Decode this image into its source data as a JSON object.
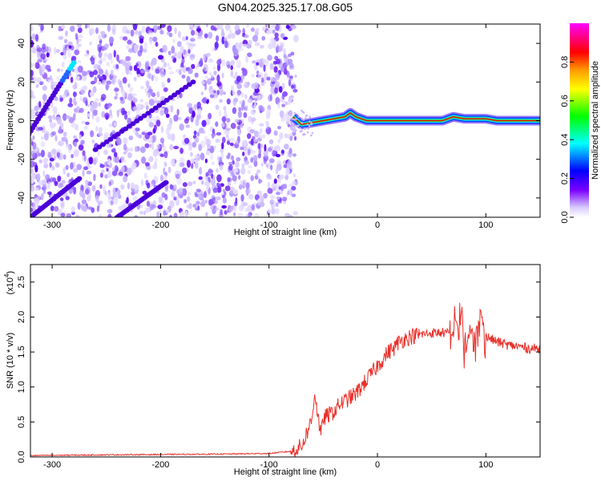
{
  "chart_data": [
    {
      "type": "heatmap",
      "title": "GN04.2025.325.17.08.G05",
      "xlabel": "Height of straight line (km)",
      "ylabel": "Frequency (Hz)",
      "xlim": [
        -320,
        150
      ],
      "ylim": [
        -50,
        50
      ],
      "x_ticks": [
        -300,
        -200,
        -100,
        0,
        100
      ],
      "y_ticks": [
        -40,
        -20,
        0,
        20,
        40
      ],
      "colorbar": {
        "label": "Normalized spectral amplitude",
        "range": [
          0,
          1
        ],
        "ticks": [
          "0.0",
          "0.2",
          "0.4",
          "0.6",
          "0.8"
        ],
        "colormap": [
          "#ffffff",
          "#e6dcff",
          "#7a00ff",
          "#0000ff",
          "#00ffff",
          "#00ff00",
          "#ffff00",
          "#ff9900",
          "#ff0000",
          "#ff00ff"
        ]
      },
      "noise_region_x": [
        -320,
        -75
      ],
      "diagonal_streaks": [
        {
          "x": [
            -325,
            -280
          ],
          "y": [
            -10,
            30
          ],
          "peak_amplitude": 0.3
        },
        {
          "x": [
            -260,
            -170
          ],
          "y": [
            -15,
            20
          ],
          "peak_amplitude": 0.05
        },
        {
          "x": [
            -320,
            -275
          ],
          "y": [
            -50,
            -30
          ],
          "peak_amplitude": 0.05
        },
        {
          "x": [
            -240,
            -195
          ],
          "y": [
            -50,
            -32
          ],
          "peak_amplitude": 0.05
        }
      ],
      "carrier_band": {
        "center_hz": [
          [
            -78,
            2
          ],
          [
            -70,
            -2
          ],
          [
            -60,
            -1
          ],
          [
            -50,
            0
          ],
          [
            -40,
            1
          ],
          [
            -30,
            2
          ],
          [
            -25,
            4
          ],
          [
            -20,
            2
          ],
          [
            -10,
            0
          ],
          [
            0,
            0
          ],
          [
            20,
            0
          ],
          [
            40,
            0
          ],
          [
            60,
            0
          ],
          [
            70,
            2
          ],
          [
            80,
            1
          ],
          [
            100,
            1
          ],
          [
            110,
            0
          ],
          [
            150,
            0
          ]
        ],
        "amplitude": 0.95
      }
    },
    {
      "type": "line",
      "xlabel": "Height of straight line (km)",
      "ylabel": "SNR (10 * v/v)",
      "y_multiplier": "(x10",
      "y_multiplier_exp": "4",
      "xlim": [
        -320,
        150
      ],
      "ylim": [
        0,
        2.75
      ],
      "x_ticks": [
        -300,
        -200,
        -100,
        0,
        100
      ],
      "y_ticks": [
        "0.0",
        "0.5",
        "1.0",
        "1.5",
        "2.0",
        "2.5"
      ],
      "line_color": "#e8302a",
      "series": [
        {
          "x": [
            -320,
            -250,
            -150,
            -100,
            -80,
            -70,
            -65,
            -60,
            -58,
            -55,
            -52,
            -50,
            -45,
            -40,
            -35,
            -30,
            -25,
            -20,
            -15,
            -10,
            -5,
            0,
            5,
            10,
            15,
            20,
            30,
            40,
            50,
            60,
            70,
            72,
            75,
            78,
            80,
            85,
            90,
            95,
            100,
            110,
            120,
            130,
            140,
            150
          ],
          "y": [
            0.02,
            0.03,
            0.04,
            0.05,
            0.08,
            0.15,
            0.35,
            0.55,
            0.95,
            0.6,
            0.3,
            0.55,
            0.6,
            0.65,
            0.75,
            0.8,
            0.85,
            0.9,
            1.0,
            1.1,
            1.2,
            1.3,
            1.4,
            1.5,
            1.55,
            1.65,
            1.72,
            1.75,
            1.77,
            1.78,
            1.75,
            2.0,
            1.7,
            2.15,
            1.3,
            1.85,
            1.7,
            2.1,
            1.72,
            1.65,
            1.6,
            1.58,
            1.55,
            1.55
          ]
        }
      ]
    }
  ]
}
